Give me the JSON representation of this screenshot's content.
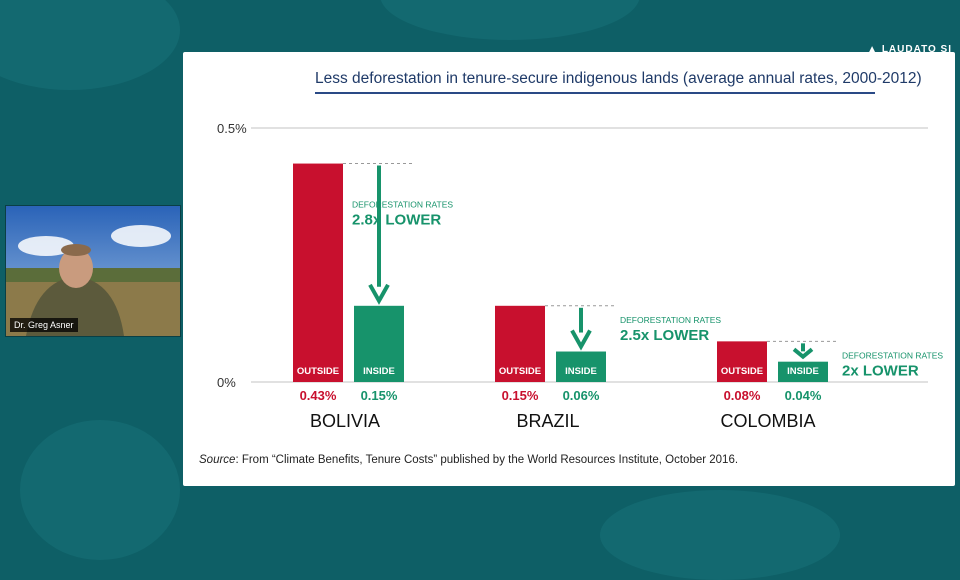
{
  "brand": {
    "text": "LAUDATO SI"
  },
  "webcam": {
    "name": "Dr. Greg Asner"
  },
  "slide": {
    "title": "Less deforestation in tenure-secure indigenous lands (average annual rates, 2000-2012)",
    "source_label": "Source",
    "source_text": ": From “Climate Benefits, Tenure Costs” published by the World Resources Institute, October 2016."
  },
  "colors": {
    "background": "#0e5f66",
    "outside": "#c8102e",
    "inside": "#17936b",
    "title": "#1f3a68"
  },
  "chart_data": {
    "type": "bar",
    "categories": [
      "BOLIVIA",
      "BRAZIL",
      "COLOMBIA"
    ],
    "series": [
      {
        "name": "OUTSIDE",
        "values": [
          0.43,
          0.15,
          0.08
        ],
        "labels": [
          "0.43%",
          "0.15%",
          "0.08%"
        ]
      },
      {
        "name": "INSIDE",
        "values": [
          0.15,
          0.06,
          0.04
        ],
        "labels": [
          "0.15%",
          "0.06%",
          "0.04%"
        ]
      }
    ],
    "yticks": [
      "0%",
      "0.5%"
    ],
    "ylim": [
      0,
      0.5
    ],
    "annotations": [
      {
        "caption": "DEFORESTATION RATES",
        "value": "2.8x LOWER"
      },
      {
        "caption": "DEFORESTATION RATES",
        "value": "2.5x LOWER"
      },
      {
        "caption": "DEFORESTATION RATES",
        "value": "2x LOWER"
      }
    ]
  }
}
